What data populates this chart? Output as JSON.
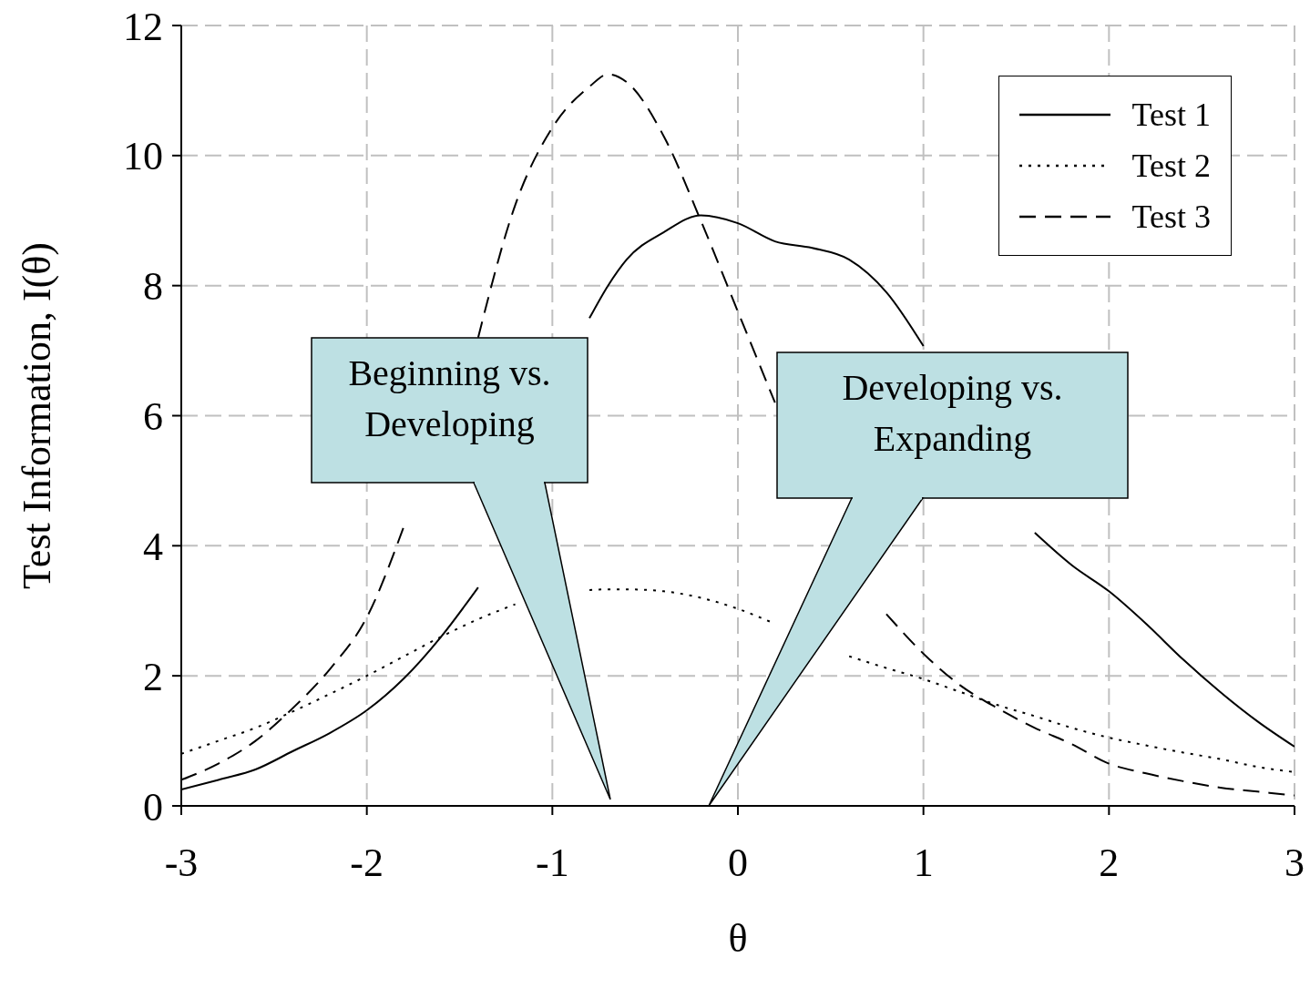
{
  "chart_data": {
    "type": "line",
    "xlabel": "θ",
    "ylabel": "Test Information, I(θ)",
    "x": [
      -3,
      -2.8,
      -2.6,
      -2.4,
      -2.2,
      -2,
      -1.8,
      -1.6,
      -1.4,
      -1.2,
      -1,
      -0.8,
      -0.7,
      -0.6,
      -0.4,
      -0.2,
      0,
      0.2,
      0.4,
      0.6,
      0.8,
      1,
      1.2,
      1.4,
      1.6,
      1.8,
      2,
      2.2,
      2.4,
      2.6,
      2.8,
      3
    ],
    "series": [
      {
        "name": "Test 1",
        "color": "#000000",
        "line_style": "solid",
        "values": [
          0.25,
          0.4,
          0.56,
          0.84,
          1.12,
          1.47,
          1.96,
          2.6,
          3.36,
          null,
          null,
          7.5,
          8.0,
          8.4,
          8.82,
          9.08,
          8.96,
          8.68,
          8.58,
          8.4,
          7.9,
          7.07,
          null,
          null,
          4.2,
          3.7,
          3.3,
          2.8,
          2.25,
          1.75,
          1.3,
          0.91
        ]
      },
      {
        "name": "Test 2",
        "color": "#000000",
        "line_style": "dotted",
        "values": [
          0.8,
          1.0,
          1.2,
          1.45,
          1.72,
          2.0,
          2.3,
          2.6,
          2.87,
          3.1,
          null,
          3.32,
          3.33,
          3.33,
          3.3,
          3.2,
          3.03,
          2.8,
          null,
          2.3,
          2.12,
          1.95,
          1.75,
          1.55,
          1.38,
          1.2,
          1.05,
          0.93,
          0.82,
          0.72,
          0.6,
          0.52
        ]
      },
      {
        "name": "Test 3",
        "color": "#000000",
        "line_style": "dashed",
        "values": [
          0.4,
          0.65,
          1.0,
          1.5,
          2.1,
          2.9,
          4.3,
          null,
          7.2,
          9.24,
          10.43,
          11.06,
          11.25,
          11.13,
          10.3,
          9.0,
          7.6,
          6.2,
          null,
          null,
          2.95,
          2.34,
          1.85,
          1.5,
          1.2,
          0.95,
          0.65,
          0.5,
          0.38,
          0.28,
          0.22,
          0.16
        ]
      }
    ],
    "xlim": [
      -3,
      3
    ],
    "xticks": [
      -3,
      -2,
      -1,
      0,
      1,
      2,
      3
    ],
    "ylim": [
      0,
      12
    ],
    "yticks": [
      0,
      2,
      4,
      6,
      8,
      10,
      12
    ],
    "grid": true,
    "legend": "top right",
    "marker": "none",
    "annotations": [
      "Beginning vs. Developing",
      "Developing vs. Expanding"
    ]
  }
}
